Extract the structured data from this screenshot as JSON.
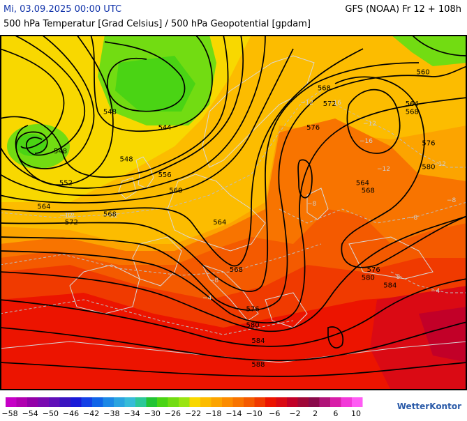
{
  "header": {
    "date": "Mi, 03.09.2025 00:00 UTC",
    "model": "GFS (NOAA) Fr 12 + 108h",
    "subtitle": "500 hPa Temperatur [Grad Celsius] / 500 hPa Geopotential [gpdam]"
  },
  "legend": {
    "colors": [
      "#c600c6",
      "#b000b0",
      "#9300a8",
      "#7a0ab0",
      "#6010b8",
      "#3a14c0",
      "#1a1ad8",
      "#1440e6",
      "#1064e8",
      "#1c88e6",
      "#2aa4e0",
      "#36bcd8",
      "#2cc898",
      "#22c434",
      "#4ad414",
      "#72dc12",
      "#9ae412",
      "#f8d800",
      "#fcbc00",
      "#fca400",
      "#fc8c00",
      "#f87400",
      "#f45a00",
      "#f03a00",
      "#ec1400",
      "#da0a14",
      "#c20028",
      "#a00838",
      "#8a0a4a",
      "#b01478",
      "#d81ea8",
      "#f238d8",
      "#ff5cf4"
    ],
    "labels": [
      "−58",
      "−54",
      "−50",
      "−46",
      "−42",
      "−38",
      "−34",
      "−30",
      "−26",
      "−22",
      "−18",
      "−14",
      "−10",
      "−6",
      "−2",
      "2",
      "6",
      "10"
    ]
  },
  "contour_labels": [
    {
      "label": "548",
      "lon": -15,
      "lat": 60
    },
    {
      "label": "544",
      "lon": -5,
      "lat": 58
    },
    {
      "label": "568",
      "lon": 24,
      "lat": 63
    },
    {
      "label": "560",
      "lon": 42,
      "lat": 65
    },
    {
      "label": "572",
      "lon": 25,
      "lat": 61
    },
    {
      "label": "564",
      "lon": 40,
      "lat": 61
    },
    {
      "label": "568",
      "lon": 40,
      "lat": 60
    },
    {
      "label": "576",
      "lon": 22,
      "lat": 58
    },
    {
      "label": "576",
      "lon": 43,
      "lat": 56
    },
    {
      "label": "548",
      "lon": -24,
      "lat": 55
    },
    {
      "label": "548",
      "lon": -12,
      "lat": 54
    },
    {
      "label": "564",
      "lon": 31,
      "lat": 51
    },
    {
      "label": "568",
      "lon": 32,
      "lat": 50
    },
    {
      "label": "580",
      "lon": 43,
      "lat": 53
    },
    {
      "label": "552",
      "lon": -23,
      "lat": 51
    },
    {
      "label": "556",
      "lon": -5,
      "lat": 52
    },
    {
      "label": "560",
      "lon": -3,
      "lat": 50
    },
    {
      "label": "564",
      "lon": -27,
      "lat": 48
    },
    {
      "label": "568",
      "lon": -15,
      "lat": 47
    },
    {
      "label": "572",
      "lon": -22,
      "lat": 46
    },
    {
      "label": "564",
      "lon": 5,
      "lat": 46
    },
    {
      "label": "568",
      "lon": 8,
      "lat": 40
    },
    {
      "label": "576",
      "lon": 33,
      "lat": 40
    },
    {
      "label": "580",
      "lon": 32,
      "lat": 39
    },
    {
      "label": "584",
      "lon": 36,
      "lat": 38
    },
    {
      "label": "576",
      "lon": 11,
      "lat": 35
    },
    {
      "label": "580",
      "lon": 11,
      "lat": 33
    },
    {
      "label": "584",
      "lon": 12,
      "lat": 31
    },
    {
      "label": "588",
      "lon": 12,
      "lat": 28
    }
  ],
  "isotherm_labels": [
    "−12",
    "−16",
    "−12",
    "−12",
    "−12",
    "−12",
    "−8",
    "−12",
    "−16",
    "−8",
    "−8",
    "−12",
    "−8",
    "−4",
    "−4",
    "−8"
  ]
}
